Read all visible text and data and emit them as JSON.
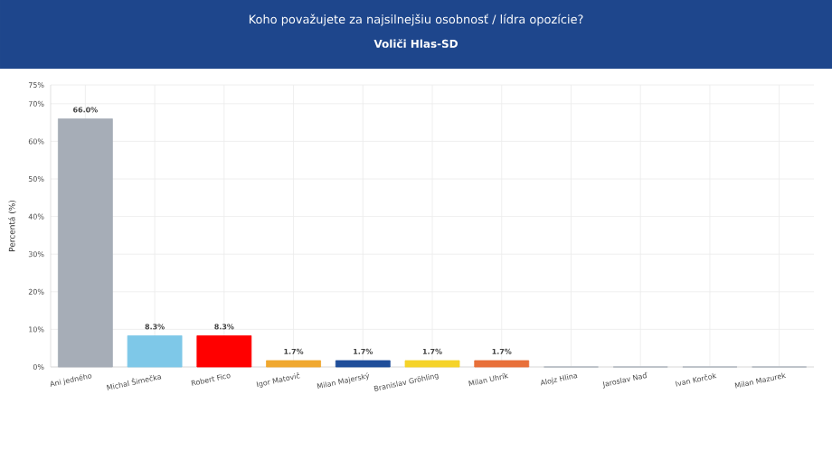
{
  "chart_data": {
    "type": "bar",
    "title": "Koho považujete za najsilnejšiu osobnosť / lídra opozície?",
    "subtitle": "Voliči Hlas-SD",
    "ylabel": "Percentá (%)",
    "categories": [
      "Ani jedného",
      "Michal Šimečka",
      "Robert Fico",
      "Igor Matovič",
      "Milan Majerský",
      "Branislav Gröhling",
      "Milan Uhrík",
      "Alojz Hlina",
      "Jaroslav Naď",
      "Ivan Korčok",
      "Milan Mazurek"
    ],
    "values": [
      66.0,
      8.3,
      8.3,
      1.7,
      1.7,
      1.7,
      1.7,
      0,
      0,
      0,
      0
    ],
    "value_labels": [
      "66.0%",
      "8.3%",
      "8.3%",
      "1.7%",
      "1.7%",
      "1.7%",
      "1.7%",
      null,
      null,
      null,
      null
    ],
    "colors": [
      "#a6adb7",
      "#7ec8e8",
      "#ff0000",
      "#f0a830",
      "#1f4e9a",
      "#f5d329",
      "#e8703a",
      "#a6adb7",
      "#a6adb7",
      "#a6adb7",
      "#a6adb7"
    ],
    "ylim": [
      0,
      75
    ],
    "yticks": [
      {
        "value": 0,
        "label": "0%"
      },
      {
        "value": 10,
        "label": "10%"
      },
      {
        "value": 20,
        "label": "20%"
      },
      {
        "value": 30,
        "label": "30%"
      },
      {
        "value": 40,
        "label": "40%"
      },
      {
        "value": 50,
        "label": "50%"
      },
      {
        "value": 60,
        "label": "60%"
      },
      {
        "value": 70,
        "label": "70%"
      },
      {
        "value": 75,
        "label": "75%"
      }
    ],
    "grid": true
  }
}
